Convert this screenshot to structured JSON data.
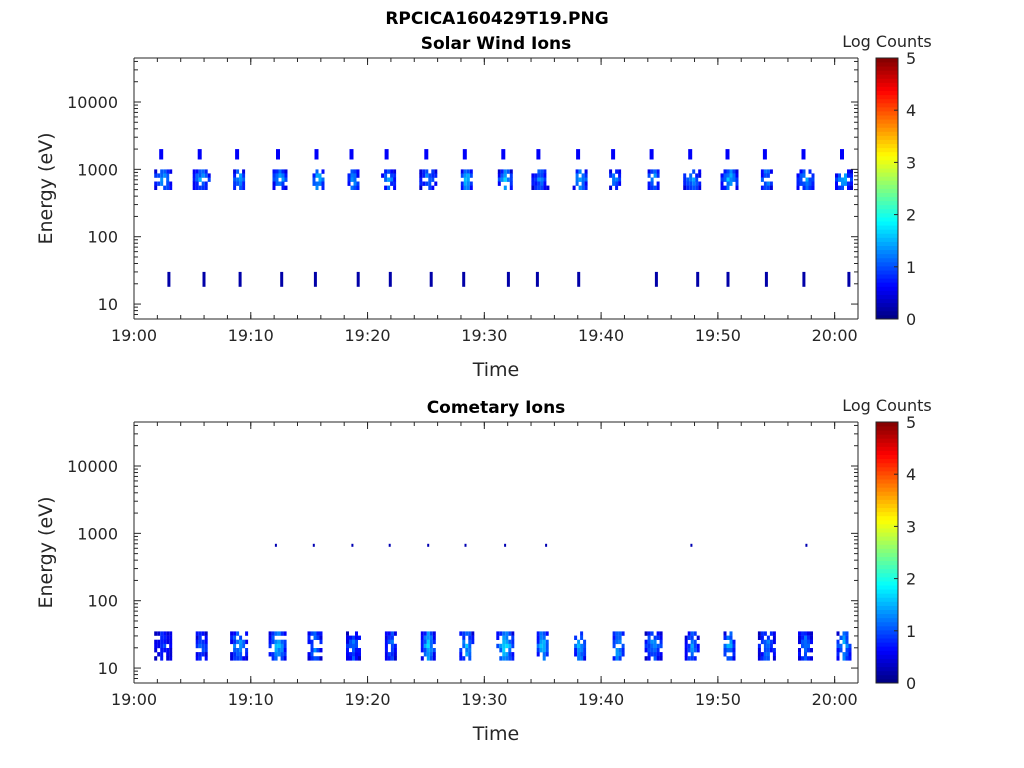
{
  "figure": {
    "title": "RPCICA160429T19.PNG"
  },
  "colors": {
    "axis": "#262626",
    "colormap": "jet",
    "background": "#ffffff"
  },
  "chart_data": [
    {
      "type": "heatmap",
      "title": "Solar Wind Ions",
      "xlabel": "Time",
      "ylabel": "Energy (eV)",
      "y_scale": "log",
      "ylim": [
        6,
        45000
      ],
      "xlim": [
        "19:00",
        "20:02"
      ],
      "x_ticks": [
        "19:00",
        "19:10",
        "19:20",
        "19:30",
        "19:40",
        "19:50",
        "20:00"
      ],
      "y_ticks": [
        "10",
        "100",
        "1000",
        "10000"
      ],
      "colorbar": {
        "label": "Log Counts",
        "min": 0,
        "max": 5,
        "ticks": [
          "0",
          "1",
          "2",
          "3",
          "4",
          "5"
        ]
      },
      "bursts": [
        {
          "t": "19:02.5",
          "e_low": 500,
          "e_high": 1000,
          "log_counts": 1.6
        },
        {
          "t": "19:05.8",
          "e_low": 500,
          "e_high": 1000,
          "log_counts": 1.5
        },
        {
          "t": "19:09.0",
          "e_low": 500,
          "e_high": 1000,
          "log_counts": 1.6
        },
        {
          "t": "19:12.5",
          "e_low": 500,
          "e_high": 1000,
          "log_counts": 1.5
        },
        {
          "t": "19:15.8",
          "e_low": 500,
          "e_high": 1000,
          "log_counts": 1.7
        },
        {
          "t": "19:18.8",
          "e_low": 500,
          "e_high": 1000,
          "log_counts": 1.5
        },
        {
          "t": "19:21.8",
          "e_low": 500,
          "e_high": 1000,
          "log_counts": 1.4
        },
        {
          "t": "19:25.2",
          "e_low": 500,
          "e_high": 1000,
          "log_counts": 1.4
        },
        {
          "t": "19:28.5",
          "e_low": 500,
          "e_high": 1000,
          "log_counts": 1.8
        },
        {
          "t": "19:31.8",
          "e_low": 500,
          "e_high": 1000,
          "log_counts": 1.5
        },
        {
          "t": "19:34.8",
          "e_low": 500,
          "e_high": 1000,
          "log_counts": 1.3
        },
        {
          "t": "19:38.2",
          "e_low": 500,
          "e_high": 1000,
          "log_counts": 1.6
        },
        {
          "t": "19:41.2",
          "e_low": 500,
          "e_high": 1000,
          "log_counts": 1.4
        },
        {
          "t": "19:44.5",
          "e_low": 500,
          "e_high": 1000,
          "log_counts": 1.6
        },
        {
          "t": "19:47.8",
          "e_low": 500,
          "e_high": 1000,
          "log_counts": 1.4
        },
        {
          "t": "19:51.0",
          "e_low": 500,
          "e_high": 1000,
          "log_counts": 1.6
        },
        {
          "t": "19:54.2",
          "e_low": 500,
          "e_high": 1000,
          "log_counts": 1.5
        },
        {
          "t": "19:57.5",
          "e_low": 500,
          "e_high": 1000,
          "log_counts": 1.4
        },
        {
          "t": "20:00.8",
          "e_low": 500,
          "e_high": 1000,
          "log_counts": 1.5
        }
      ]
    },
    {
      "type": "heatmap",
      "title": "Cometary Ions",
      "xlabel": "Time",
      "ylabel": "Energy (eV)",
      "y_scale": "log",
      "ylim": [
        6,
        45000
      ],
      "xlim": [
        "19:00",
        "20:02"
      ],
      "x_ticks": [
        "19:00",
        "19:10",
        "19:20",
        "19:30",
        "19:40",
        "19:50",
        "20:00"
      ],
      "y_ticks": [
        "10",
        "100",
        "1000",
        "10000"
      ],
      "colorbar": {
        "label": "Log Counts",
        "min": 0,
        "max": 5,
        "ticks": [
          "0",
          "1",
          "2",
          "3",
          "4",
          "5"
        ]
      },
      "bursts": [
        {
          "t": "19:02.5",
          "e_low": 13,
          "e_high": 35,
          "log_counts": 1.0
        },
        {
          "t": "19:05.8",
          "e_low": 13,
          "e_high": 35,
          "log_counts": 1.3
        },
        {
          "t": "19:09.0",
          "e_low": 13,
          "e_high": 35,
          "log_counts": 1.5
        },
        {
          "t": "19:12.3",
          "e_low": 13,
          "e_high": 35,
          "log_counts": 1.7
        },
        {
          "t": "19:15.5",
          "e_low": 13,
          "e_high": 35,
          "log_counts": 1.4
        },
        {
          "t": "19:18.8",
          "e_low": 13,
          "e_high": 35,
          "log_counts": 1.2
        },
        {
          "t": "19:22.0",
          "e_low": 13,
          "e_high": 35,
          "log_counts": 1.3
        },
        {
          "t": "19:25.2",
          "e_low": 13,
          "e_high": 35,
          "log_counts": 1.6
        },
        {
          "t": "19:28.5",
          "e_low": 13,
          "e_high": 35,
          "log_counts": 1.5
        },
        {
          "t": "19:31.8",
          "e_low": 13,
          "e_high": 35,
          "log_counts": 1.8
        },
        {
          "t": "19:35.0",
          "e_low": 13,
          "e_high": 35,
          "log_counts": 1.7
        },
        {
          "t": "19:38.2",
          "e_low": 13,
          "e_high": 35,
          "log_counts": 1.6
        },
        {
          "t": "19:41.5",
          "e_low": 13,
          "e_high": 35,
          "log_counts": 1.7
        },
        {
          "t": "19:44.5",
          "e_low": 13,
          "e_high": 35,
          "log_counts": 1.4
        },
        {
          "t": "19:47.8",
          "e_low": 13,
          "e_high": 35,
          "log_counts": 1.3
        },
        {
          "t": "19:51.0",
          "e_low": 13,
          "e_high": 35,
          "log_counts": 1.6
        },
        {
          "t": "19:54.2",
          "e_low": 13,
          "e_high": 35,
          "log_counts": 1.3
        },
        {
          "t": "19:57.5",
          "e_low": 13,
          "e_high": 35,
          "log_counts": 1.2
        },
        {
          "t": "20:00.8",
          "e_low": 13,
          "e_high": 35,
          "log_counts": 1.5
        }
      ]
    }
  ]
}
